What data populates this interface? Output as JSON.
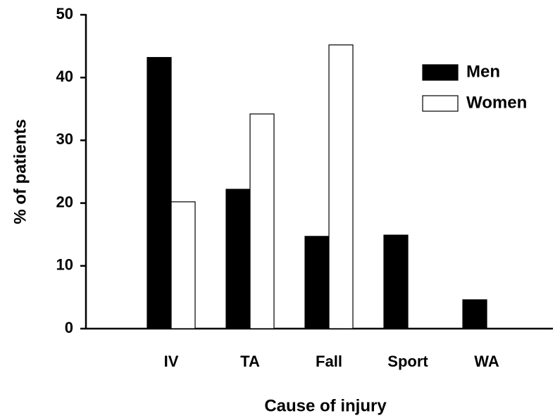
{
  "chart_data": {
    "type": "bar",
    "x_label": "Cause of injury",
    "y_label": "% of patients",
    "categories": [
      "IV",
      "TA",
      "Fall",
      "Sport",
      "WA"
    ],
    "series": [
      {
        "name": "Men",
        "color": "#000000",
        "values": [
          43.2,
          22.2,
          14.7,
          14.9,
          4.6
        ]
      },
      {
        "name": "Women",
        "color": "#ffffff",
        "values": [
          20.2,
          34.2,
          45.2,
          0,
          0
        ]
      }
    ],
    "ylim": [
      0,
      50
    ],
    "yticks": [
      0,
      10,
      20,
      30,
      40,
      50
    ],
    "legend": "upper right"
  }
}
